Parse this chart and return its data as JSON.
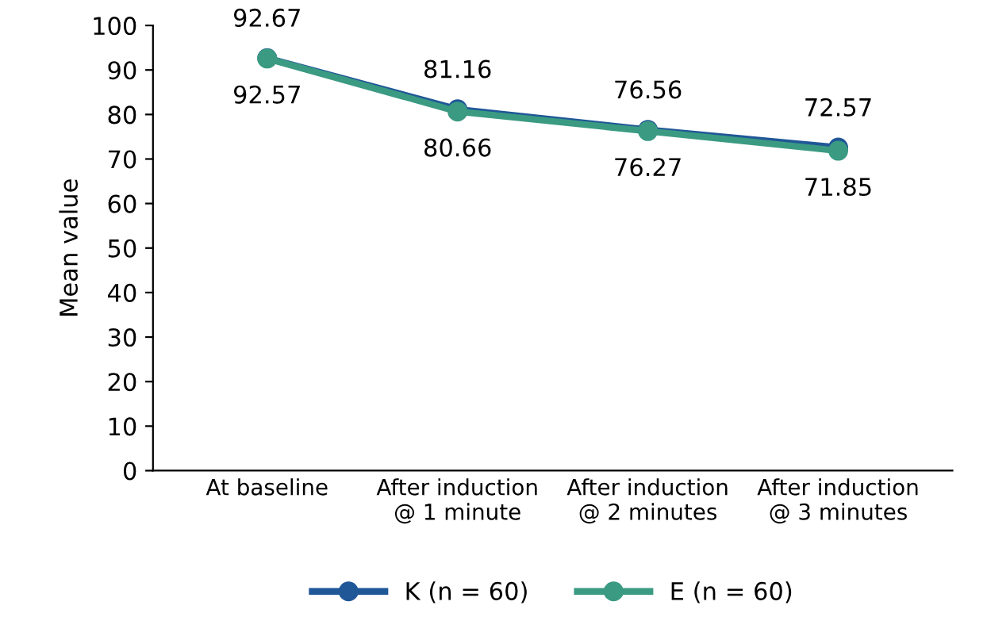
{
  "chart_data": {
    "type": "line",
    "ylabel": "Mean value",
    "categories": [
      "At baseline",
      "After induction\n@ 1 minute",
      "After induction\n@ 2 minutes",
      "After induction\n@ 3 minutes"
    ],
    "series": [
      {
        "name": "K (n = 60)",
        "color": "#1f5797",
        "values": [
          92.67,
          81.16,
          76.56,
          72.57
        ],
        "value_labels": [
          "92.67",
          "81.16",
          "76.56",
          "72.57"
        ]
      },
      {
        "name": "E (n = 60)",
        "color": "#3b9a82",
        "values": [
          92.57,
          80.66,
          76.27,
          71.85
        ],
        "value_labels": [
          "92.57",
          "80.66",
          "76.27",
          "71.85"
        ]
      }
    ],
    "ylim": [
      0,
      100
    ],
    "yticks": [
      0,
      10,
      20,
      30,
      40,
      50,
      60,
      70,
      80,
      90,
      100
    ],
    "grid": false,
    "legend": "bottom",
    "marker": "circle",
    "line_style": "solid"
  }
}
